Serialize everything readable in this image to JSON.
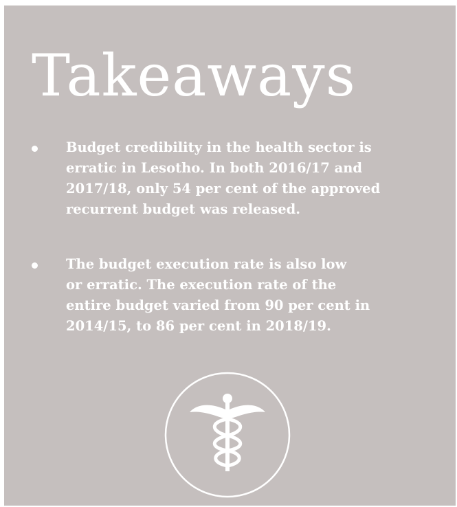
{
  "header": {
    "title": "Takeaways"
  },
  "bullets": [
    {
      "lines": [
        "Budget credibility in the health sector is",
        "erratic in Lesotho. In both 2016/17 and",
        "2017/18, only 54 per cent of the approved",
        "recurrent budget was released."
      ]
    },
    {
      "lines": [
        "The budget execution rate is also low",
        "or erratic. The execution rate of the",
        "entire budget varied from 90 per cent in",
        "2014/15, to 86 per cent in 2018/19."
      ]
    }
  ]
}
